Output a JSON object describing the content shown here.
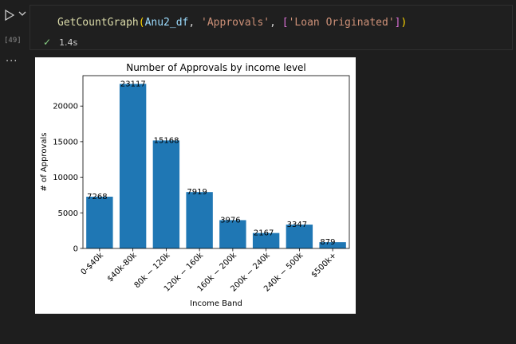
{
  "cell": {
    "execution_count": "[49]",
    "code_tokens": [
      {
        "text": "GetCountGraph",
        "color": "#dcdcaa"
      },
      {
        "text": "(",
        "color": "#ffd700"
      },
      {
        "text": "Anu2_df",
        "color": "#9cdcfe"
      },
      {
        "text": ", ",
        "color": "#d4d4d4"
      },
      {
        "text": "'Approvals'",
        "color": "#ce9178"
      },
      {
        "text": ", ",
        "color": "#d4d4d4"
      },
      {
        "text": "[",
        "color": "#da70d6"
      },
      {
        "text": "'Loan Originated'",
        "color": "#ce9178"
      },
      {
        "text": "]",
        "color": "#da70d6"
      },
      {
        "text": ")",
        "color": "#ffd700"
      }
    ],
    "status_icon": "check-icon",
    "duration": "1.4s",
    "menu_icon": "ellipsis-icon",
    "run_icon": "play-icon"
  },
  "chart_data": {
    "type": "bar",
    "title": "Number of Approvals by income level",
    "xlabel": "Income Band",
    "ylabel": "# of Approvals",
    "categories": [
      "0-$40k",
      "$40k-80k",
      "80k − 120k",
      "120k − 160k",
      "160k − 200k",
      "200k − 240k",
      "240k − 500k",
      "$500k+"
    ],
    "values": [
      7268,
      23117,
      15168,
      7919,
      3976,
      2167,
      3347,
      879
    ],
    "ylim": [
      0,
      24272
    ],
    "yticks": [
      0,
      5000,
      10000,
      15000,
      20000
    ],
    "bar_color": "#1f77b4",
    "grid": false,
    "legend": "none"
  }
}
